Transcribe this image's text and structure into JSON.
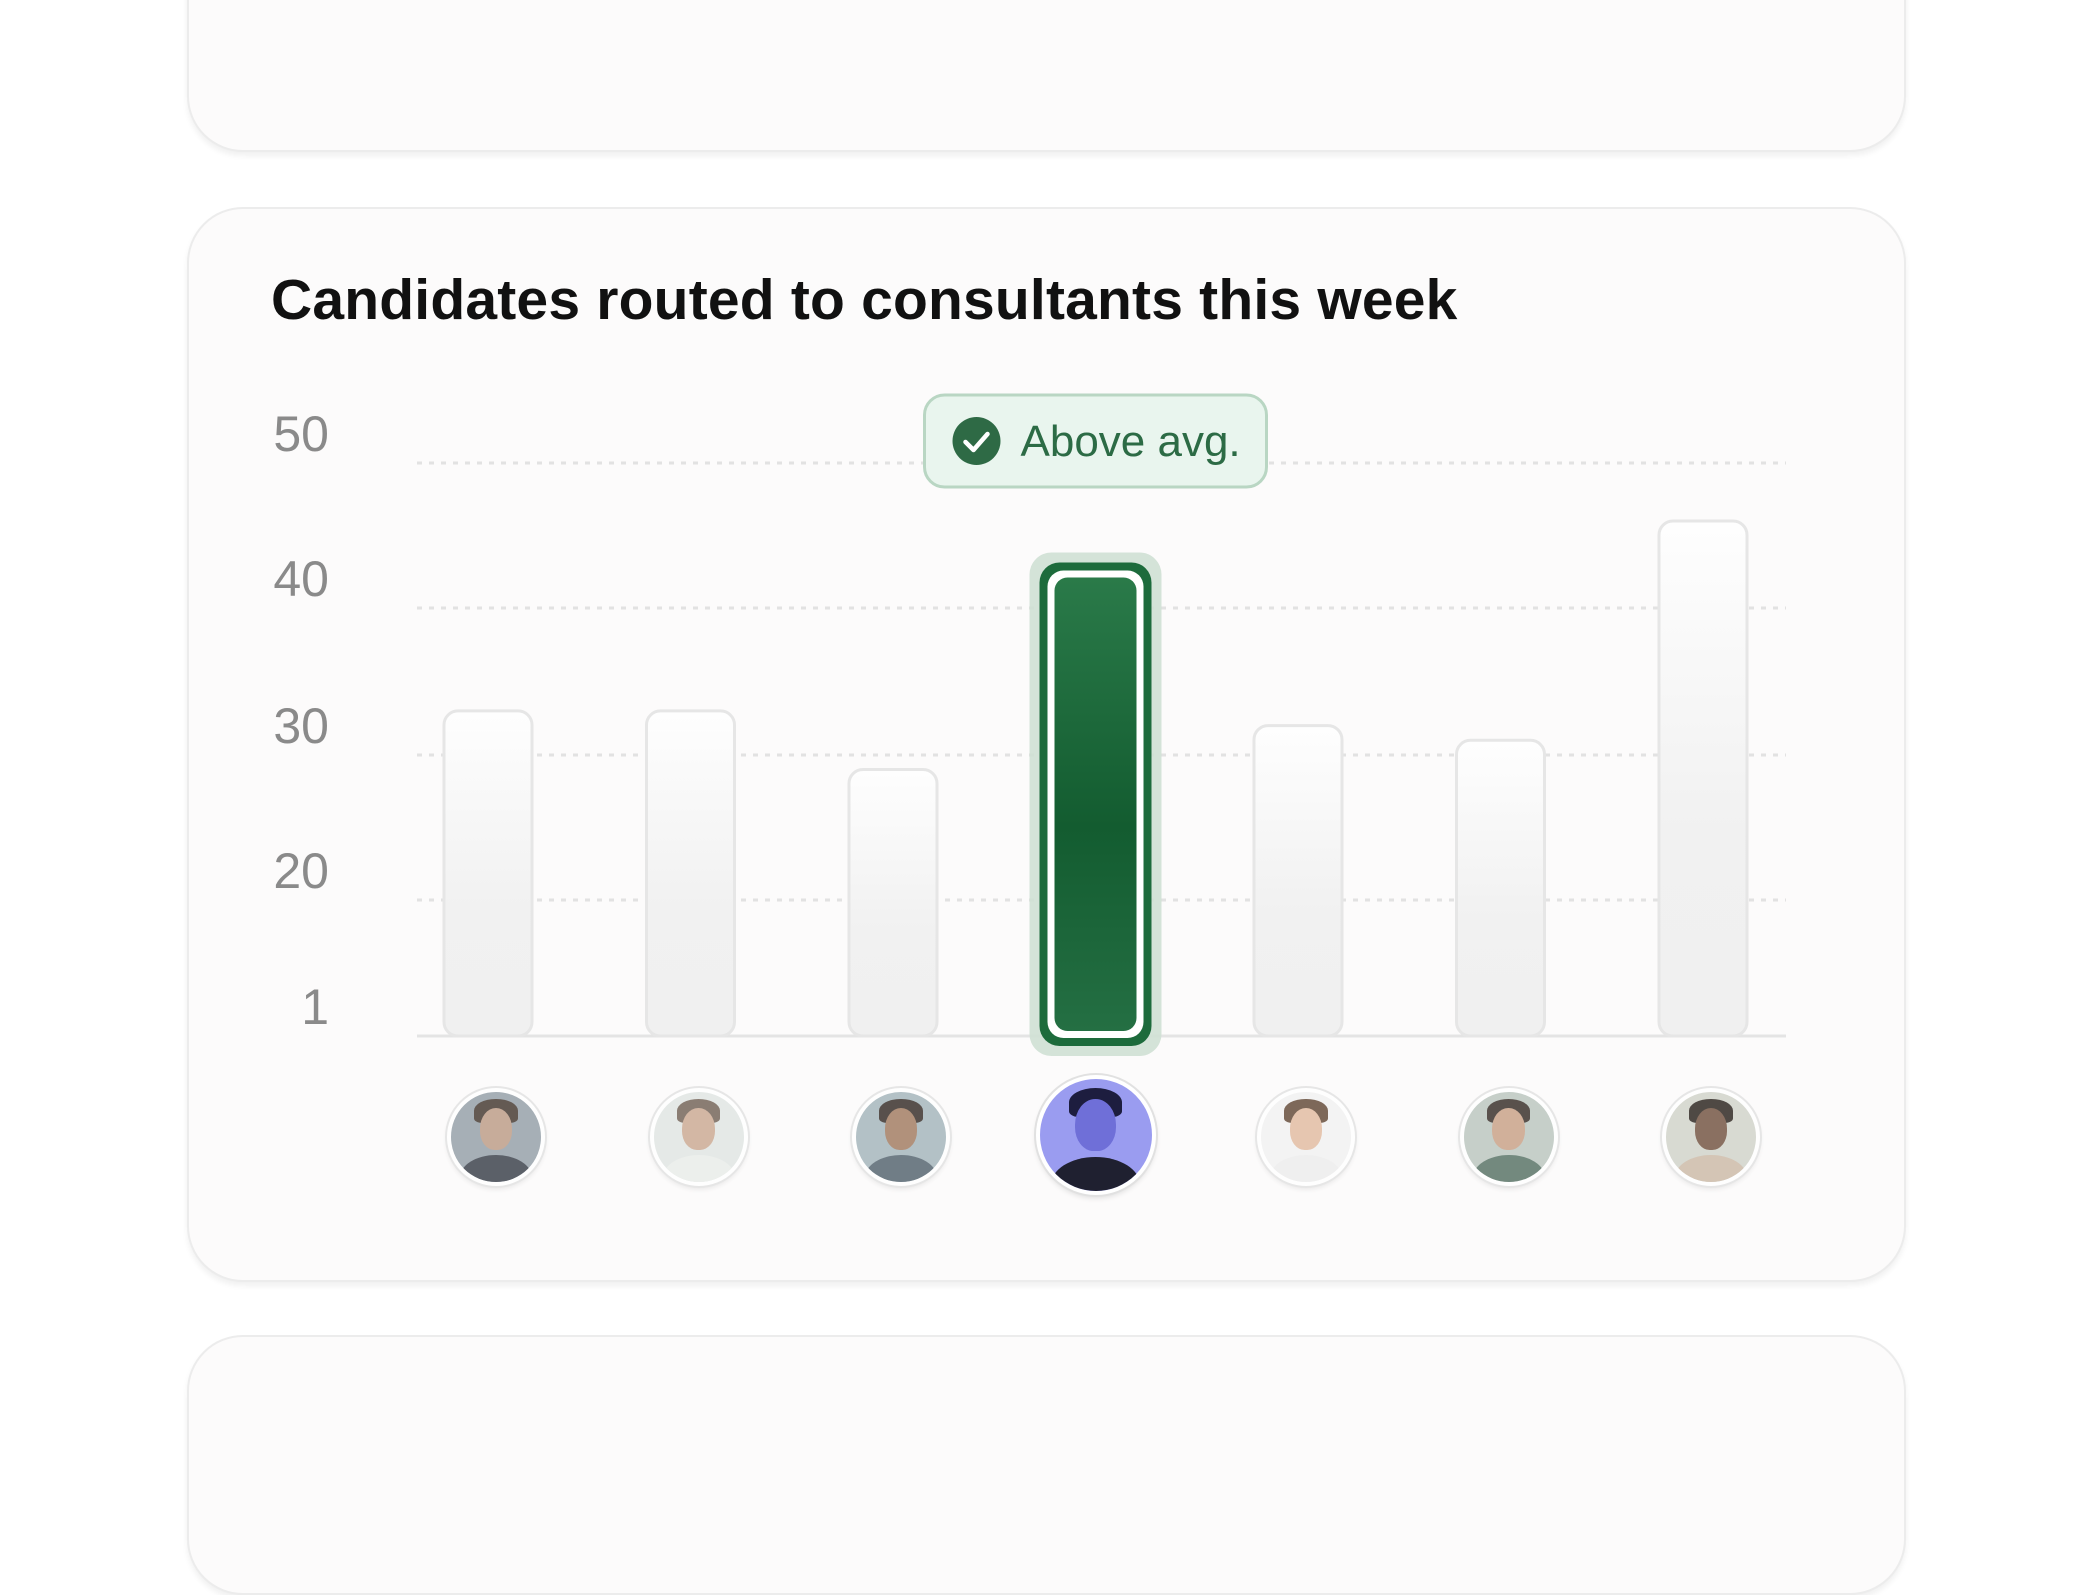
{
  "chart_data": {
    "type": "bar",
    "title": "Candidates routed to consultants this week",
    "xlabel": "",
    "ylabel": "",
    "y_ticks": [
      "50",
      "40",
      "30",
      "20",
      "1"
    ],
    "y_tick_values": [
      50,
      40,
      30,
      20,
      1
    ],
    "ylim": [
      1,
      50
    ],
    "grid": true,
    "categories": [
      "",
      "",
      "",
      "",
      "",
      "",
      ""
    ],
    "values": [
      33,
      33,
      29,
      43,
      32,
      31,
      46
    ],
    "highlight_index": 3,
    "annotation": {
      "label": "Above avg.",
      "icon": "check-circle-icon",
      "target_index": 3
    }
  },
  "avatars": [
    {
      "icon": "avatar-photo",
      "skin": "#b99680",
      "hair": "#3a2d25",
      "shirt": "#2f3540",
      "bg": "#8e9aa3"
    },
    {
      "icon": "avatar-photo",
      "skin": "#c8a48c",
      "hair": "#6b5a4e",
      "shirt": "#e8ece8",
      "bg": "#dfe5e2"
    },
    {
      "icon": "avatar-photo",
      "skin": "#9c7458",
      "hair": "#2b211b",
      "shirt": "#4a5a66",
      "bg": "#9fb1b8"
    },
    {
      "icon": "avatar-photo",
      "skin": "#6f6fd8",
      "hair": "#1d1d3f",
      "shirt": "#1f2030",
      "bg": "#9a9cf0"
    },
    {
      "icon": "avatar-photo",
      "skin": "#e0b89b",
      "hair": "#5a3f2c",
      "shirt": "#ececec",
      "bg": "#f1f1f1"
    },
    {
      "icon": "avatar-photo",
      "skin": "#c69c80",
      "hair": "#2c221c",
      "shirt": "#4d6a5c",
      "bg": "#b7c3bc"
    },
    {
      "icon": "avatar-photo",
      "skin": "#6b4a36",
      "hair": "#1f1812",
      "shirt": "#c9b6a2",
      "bg": "#cfd1c7"
    }
  ],
  "colors": {
    "accent": "#1d6b3c",
    "accent_dark": "#135c30",
    "bar_light": "#f3f3f3",
    "badge_bg": "#e9f5ee",
    "badge_border": "#b9d6c3",
    "badge_text": "#2c6b45",
    "grid": "#e2e2e2",
    "tick": "#8a8a8a"
  }
}
